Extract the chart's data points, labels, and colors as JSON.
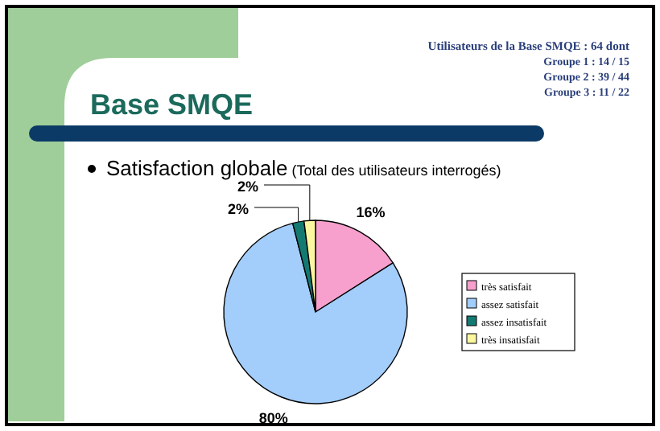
{
  "chart_data": {
    "type": "pie",
    "title": "Base SMQE",
    "subtitle": "Satisfaction globale (Total des utilisateurs interrogés)",
    "annotations": [
      "Utilisateurs de la Base SMQE : 64 dont",
      "Groupe 1 : 14 / 15",
      "Groupe 2 : 39 / 44",
      "Groupe 3 : 11 / 22"
    ],
    "categories": [
      "très satisfait",
      "assez satisfait",
      "assez insatisfait",
      "très insatisfait"
    ],
    "values": [
      16,
      80,
      2,
      2
    ],
    "colors": [
      "#f79fcd",
      "#a3cdfb",
      "#137a72",
      "#fbf6a0"
    ],
    "value_labels": [
      "16%",
      "80%",
      "2%",
      "2%"
    ],
    "legend": "right"
  }
}
